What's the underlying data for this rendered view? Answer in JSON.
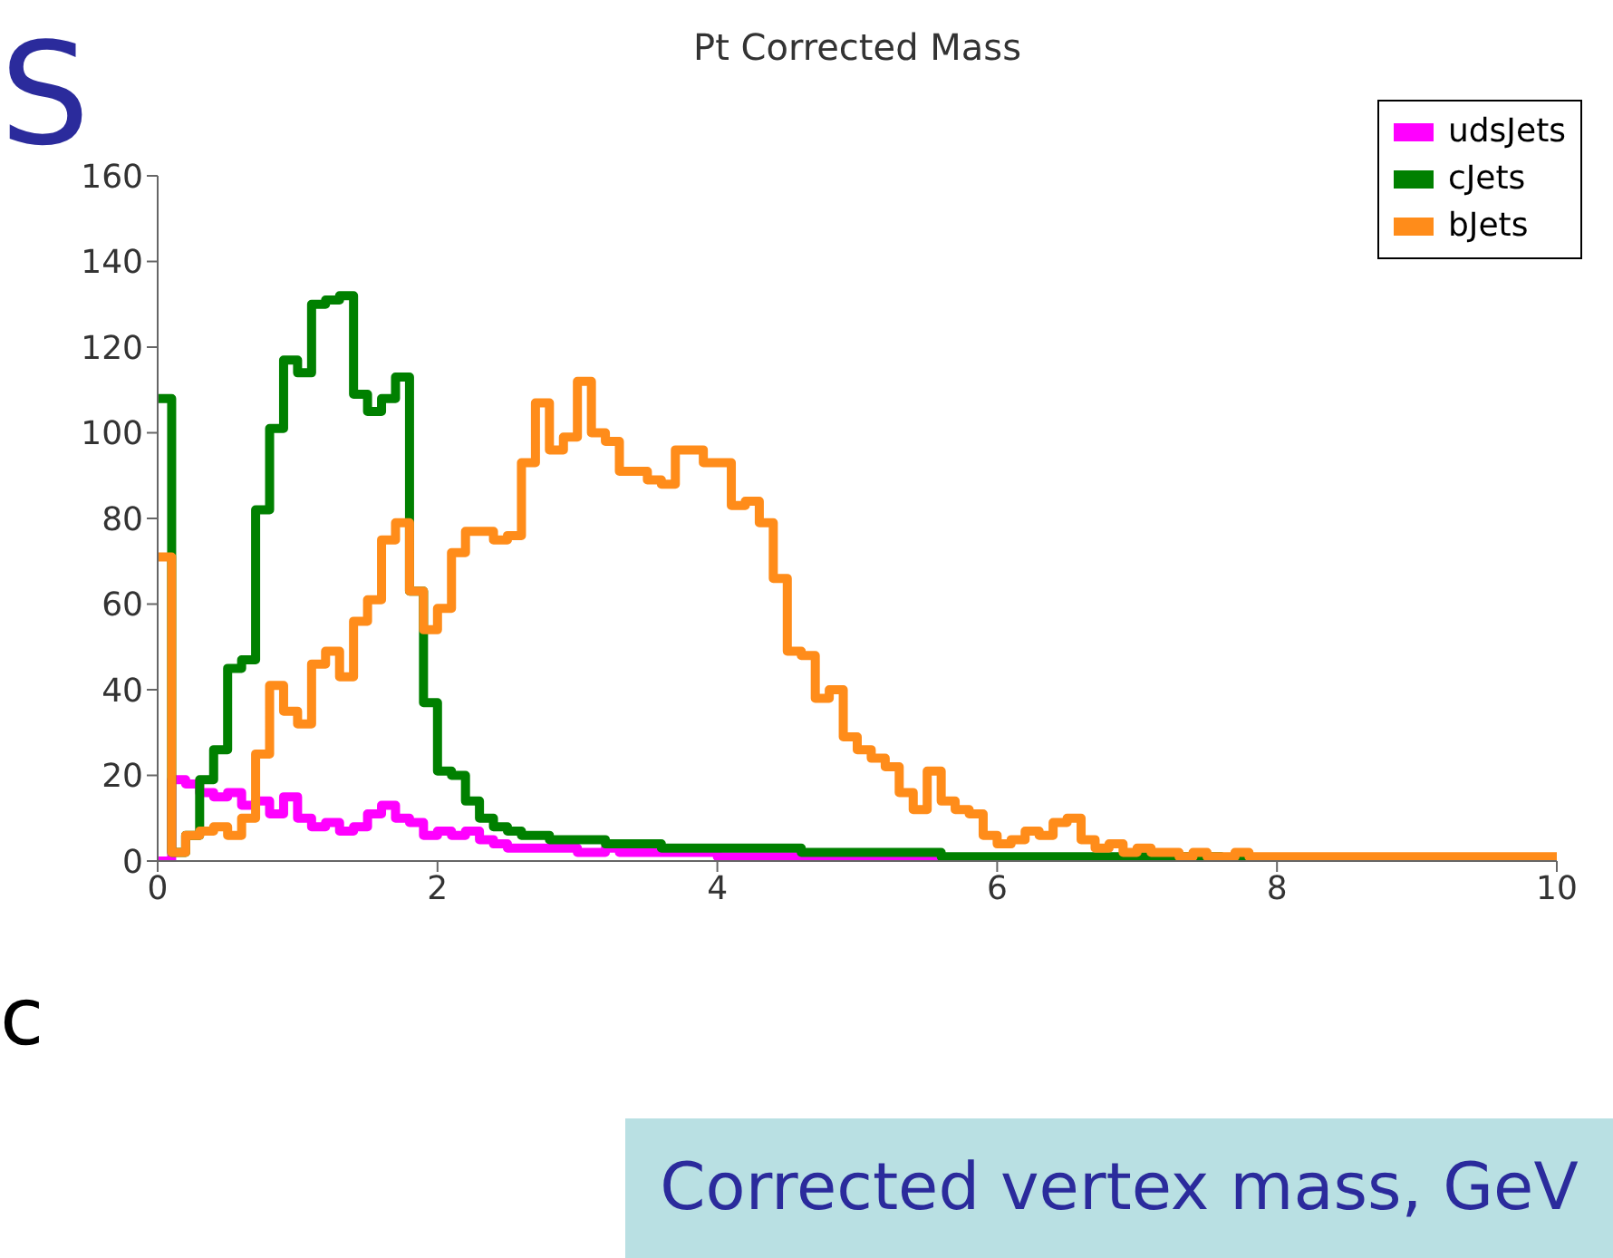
{
  "chart_data": {
    "type": "histogram",
    "title": "Pt Corrected Mass",
    "xlabel": "Corrected vertex mass, GeV",
    "bins": [
      0,
      0.1,
      0.2,
      0.3,
      0.4,
      0.5,
      0.6,
      0.7,
      0.8,
      0.9,
      1,
      1.1,
      1.2,
      1.3,
      1.4,
      1.5,
      1.6,
      1.7,
      1.8,
      1.9,
      2,
      2.1,
      2.2,
      2.3,
      2.4,
      2.5,
      2.6,
      2.7,
      2.8,
      2.9,
      3,
      3.1,
      3.2,
      3.3,
      3.4,
      3.5,
      3.6,
      3.7,
      3.8,
      3.9,
      4,
      4.1,
      4.2,
      4.3,
      4.4,
      4.5,
      4.6,
      4.7,
      4.8,
      4.9,
      5,
      5.1,
      5.2,
      5.3,
      5.4,
      5.5,
      5.6,
      5.7,
      5.8,
      5.9,
      6,
      6.1,
      6.2,
      6.3,
      6.4,
      6.5,
      6.6,
      6.7,
      6.8,
      6.9,
      7,
      7.1,
      7.2,
      7.3,
      7.4,
      7.5,
      7.6,
      7.7,
      7.8,
      7.9,
      8,
      8.1,
      8.2,
      8.3,
      8.4,
      8.5,
      8.6,
      8.7,
      8.8,
      8.9,
      9,
      9.1,
      9.2,
      9.3,
      9.4,
      9.5,
      9.6,
      9.7,
      9.8,
      9.9,
      10
    ],
    "series": [
      {
        "name": "udsJets",
        "color": "#ff00ff",
        "values": [
          0,
          19,
          18,
          16,
          15,
          16,
          13,
          14,
          11,
          15,
          10,
          8,
          9,
          7,
          8,
          11,
          13,
          10,
          9,
          6,
          7,
          6,
          7,
          5,
          4,
          3,
          3,
          3,
          3,
          3,
          2,
          2,
          3,
          2,
          2,
          2,
          2,
          2,
          2,
          2,
          1,
          1,
          1,
          1,
          1,
          1,
          1,
          1,
          1,
          1,
          1,
          1,
          1,
          1,
          1,
          0,
          0,
          0,
          0,
          0,
          0,
          0,
          0,
          0,
          0,
          0,
          0,
          0,
          0,
          0,
          0,
          0,
          0,
          0,
          0,
          0,
          0,
          0,
          0,
          0,
          0,
          0,
          0,
          0,
          0,
          0,
          0,
          0,
          0,
          0,
          0,
          0,
          0,
          0,
          0,
          0,
          0,
          0,
          0,
          0
        ]
      },
      {
        "name": "cJets",
        "color": "#008000",
        "values": [
          108,
          2,
          6,
          19,
          26,
          45,
          47,
          82,
          101,
          117,
          114,
          130,
          131,
          132,
          109,
          105,
          108,
          113,
          63,
          37,
          21,
          20,
          14,
          10,
          8,
          7,
          6,
          6,
          5,
          5,
          5,
          5,
          4,
          4,
          4,
          4,
          3,
          3,
          3,
          3,
          3,
          3,
          3,
          3,
          3,
          3,
          2,
          2,
          2,
          2,
          2,
          2,
          2,
          2,
          2,
          2,
          1,
          1,
          1,
          1,
          1,
          1,
          1,
          1,
          1,
          1,
          1,
          1,
          1,
          1,
          1,
          1,
          1,
          1,
          1,
          1,
          0,
          0,
          0,
          0,
          0,
          0,
          0,
          0,
          0,
          0,
          0,
          0,
          0,
          0,
          0,
          0,
          0,
          0,
          0,
          0,
          0,
          0,
          0,
          0
        ]
      },
      {
        "name": "bJets",
        "color": "#ff8c1a",
        "values": [
          71,
          2,
          6,
          7,
          8,
          6,
          10,
          25,
          41,
          35,
          32,
          46,
          49,
          43,
          56,
          61,
          75,
          79,
          63,
          54,
          59,
          72,
          77,
          77,
          75,
          76,
          93,
          107,
          96,
          99,
          112,
          100,
          98,
          91,
          91,
          89,
          88,
          96,
          96,
          93,
          93,
          83,
          84,
          79,
          66,
          49,
          48,
          38,
          40,
          29,
          26,
          24,
          22,
          16,
          12,
          21,
          14,
          12,
          11,
          6,
          4,
          5,
          7,
          6,
          9,
          10,
          5,
          3,
          4,
          2,
          3,
          2,
          2,
          1,
          2,
          1,
          1,
          2,
          1,
          1,
          1,
          1,
          1,
          1,
          1,
          1,
          1,
          1,
          1,
          1,
          1,
          1,
          1,
          1,
          1,
          1,
          1,
          1,
          1,
          1
        ]
      }
    ],
    "xlim": [
      0,
      10
    ],
    "xticks": [
      0,
      2,
      4,
      6,
      8,
      10
    ],
    "ylim": [
      0,
      160
    ],
    "yticks": [
      0,
      20,
      40,
      60,
      80,
      100,
      120,
      140,
      160
    ],
    "grid": false,
    "legend": "top right",
    "marker": "none",
    "line_style": "solid",
    "annotations": [
      "S",
      "c"
    ]
  }
}
